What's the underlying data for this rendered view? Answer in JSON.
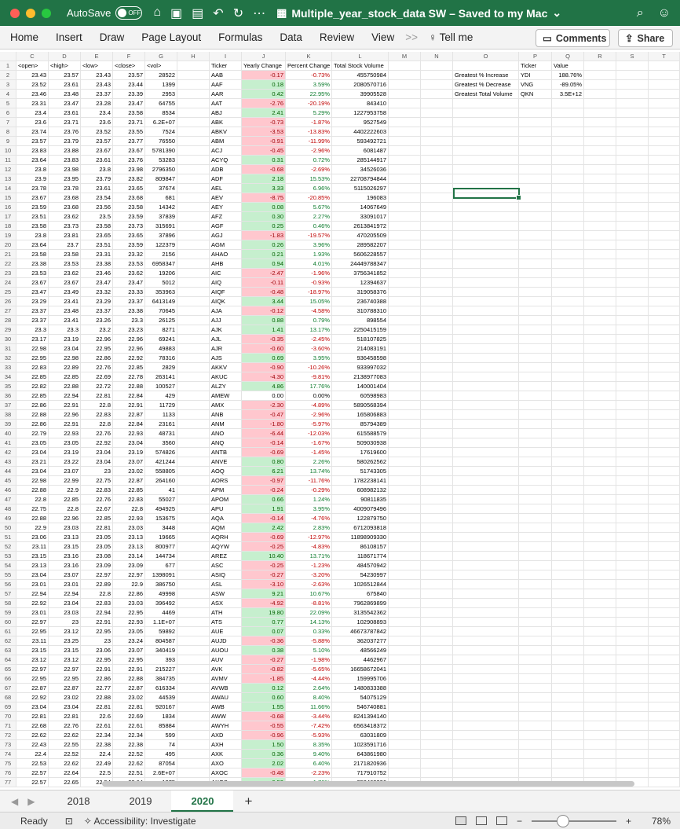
{
  "app": {
    "autosave_label": "AutoSave",
    "autosave_state": "OFF",
    "doc_title": "Multiple_year_stock_data SW – Saved to my Mac",
    "title_chevron": "⌄"
  },
  "ribbon": {
    "tabs": [
      "Home",
      "Insert",
      "Draw",
      "Page Layout",
      "Formulas",
      "Data",
      "Review",
      "View"
    ],
    "more": ">>",
    "tell_me": "Tell me",
    "comments": "Comments",
    "share": "Share"
  },
  "columns": [
    "",
    "C",
    "D",
    "E",
    "F",
    "G",
    "H",
    "I",
    "J",
    "K",
    "L",
    "M",
    "N",
    "O",
    "P",
    "Q",
    "R",
    "S",
    "T"
  ],
  "header_row": {
    "open": "<open>",
    "high": "<high>",
    "low": "<low>",
    "close": "<close>",
    "vol": "<vol>",
    "ticker": "Ticker",
    "yearly": "Yearly Change",
    "pct": "Percent Change",
    "total": "Total Stock Volume"
  },
  "summary": {
    "header": {
      "ticker": "Ticker",
      "value": "Value"
    },
    "rows": [
      {
        "label": "Greatest % Increase",
        "ticker": "YDI",
        "value": "188.76%"
      },
      {
        "label": "Greatest % Decrease",
        "ticker": "VNG",
        "value": "-89.05%"
      },
      {
        "label": "Greatest Total Volume",
        "ticker": "QKN",
        "value": "3.5E+12"
      }
    ]
  },
  "rows": [
    [
      "23.43",
      "23.57",
      "23.43",
      "23.57",
      "28522",
      "AAB",
      "-0.17",
      "-0.73%",
      "455750984"
    ],
    [
      "23.52",
      "23.61",
      "23.43",
      "23.44",
      "1399",
      "AAF",
      "0.18",
      "3.59%",
      "2080570716"
    ],
    [
      "23.46",
      "23.48",
      "23.37",
      "23.39",
      "2953",
      "AAR",
      "0.42",
      "22.95%",
      "39905528"
    ],
    [
      "23.31",
      "23.47",
      "23.28",
      "23.47",
      "64755",
      "AAT",
      "-2.76",
      "-20.19%",
      "843410"
    ],
    [
      "23.4",
      "23.61",
      "23.4",
      "23.58",
      "8534",
      "ABJ",
      "2.41",
      "5.29%",
      "1227953758"
    ],
    [
      "23.6",
      "23.71",
      "23.6",
      "23.71",
      "6.2E+07",
      "ABK",
      "-0.73",
      "-1.87%",
      "9527549"
    ],
    [
      "23.74",
      "23.76",
      "23.52",
      "23.55",
      "7524",
      "ABKV",
      "-3.53",
      "-13.83%",
      "4402222603"
    ],
    [
      "23.57",
      "23.79",
      "23.57",
      "23.77",
      "76550",
      "ABM",
      "-0.91",
      "-11.99%",
      "593492721"
    ],
    [
      "23.83",
      "23.88",
      "23.67",
      "23.67",
      "5781390",
      "ACJ",
      "-0.45",
      "-2.96%",
      "6081487"
    ],
    [
      "23.64",
      "23.83",
      "23.61",
      "23.76",
      "53283",
      "ACYQ",
      "0.31",
      "0.72%",
      "285144917"
    ],
    [
      "23.8",
      "23.98",
      "23.8",
      "23.98",
      "2796350",
      "ADB",
      "-0.68",
      "-2.69%",
      "34526036"
    ],
    [
      "23.9",
      "23.95",
      "23.79",
      "23.82",
      "809847",
      "ADF",
      "2.18",
      "15.53%",
      "22708794844"
    ],
    [
      "23.78",
      "23.78",
      "23.61",
      "23.65",
      "37674",
      "AEL",
      "3.33",
      "6.96%",
      "5115026297"
    ],
    [
      "23.67",
      "23.68",
      "23.54",
      "23.68",
      "681",
      "AEV",
      "-8.75",
      "-20.85%",
      "196083"
    ],
    [
      "23.59",
      "23.68",
      "23.56",
      "23.58",
      "14342",
      "AEY",
      "0.08",
      "5.67%",
      "14067649"
    ],
    [
      "23.51",
      "23.62",
      "23.5",
      "23.59",
      "37839",
      "AFZ",
      "0.30",
      "2.27%",
      "33091017"
    ],
    [
      "23.58",
      "23.73",
      "23.58",
      "23.73",
      "315691",
      "AGF",
      "0.25",
      "0.46%",
      "2613841972"
    ],
    [
      "23.8",
      "23.81",
      "23.65",
      "23.65",
      "37896",
      "AGJ",
      "-1.83",
      "-19.57%",
      "470205509"
    ],
    [
      "23.64",
      "23.7",
      "23.51",
      "23.59",
      "122379",
      "AGM",
      "0.26",
      "3.96%",
      "289582207"
    ],
    [
      "23.58",
      "23.58",
      "23.31",
      "23.32",
      "2156",
      "AHAO",
      "0.21",
      "1.93%",
      "5606228557"
    ],
    [
      "23.38",
      "23.53",
      "23.38",
      "23.53",
      "6958347",
      "AHB",
      "0.94",
      "4.01%",
      "24449788347"
    ],
    [
      "23.53",
      "23.62",
      "23.46",
      "23.62",
      "19206",
      "AIC",
      "-2.47",
      "-1.96%",
      "3756341852"
    ],
    [
      "23.67",
      "23.67",
      "23.47",
      "23.47",
      "5012",
      "AIQ",
      "-0.11",
      "-0.93%",
      "12394637"
    ],
    [
      "23.47",
      "23.49",
      "23.32",
      "23.33",
      "353963",
      "AIQF",
      "-0.48",
      "-18.97%",
      "319058376"
    ],
    [
      "23.29",
      "23.41",
      "23.29",
      "23.37",
      "6413149",
      "AIQK",
      "3.44",
      "15.05%",
      "236740388"
    ],
    [
      "23.37",
      "23.48",
      "23.37",
      "23.38",
      "70645",
      "AJA",
      "-0.12",
      "-4.58%",
      "310788310"
    ],
    [
      "23.37",
      "23.41",
      "23.26",
      "23.3",
      "26125",
      "AJJ",
      "0.88",
      "0.79%",
      "898554"
    ],
    [
      "23.3",
      "23.3",
      "23.2",
      "23.23",
      "8271",
      "AJK",
      "1.41",
      "13.17%",
      "2250415159"
    ],
    [
      "23.17",
      "23.19",
      "22.96",
      "22.96",
      "69241",
      "AJL",
      "-0.35",
      "-2.45%",
      "518107825"
    ],
    [
      "22.98",
      "23.04",
      "22.95",
      "22.96",
      "49883",
      "AJR",
      "-0.60",
      "-3.60%",
      "214083191"
    ],
    [
      "22.95",
      "22.98",
      "22.86",
      "22.92",
      "78316",
      "AJS",
      "0.69",
      "3.95%",
      "936458598"
    ],
    [
      "22.83",
      "22.89",
      "22.76",
      "22.85",
      "2829",
      "AKKV",
      "-0.90",
      "-10.26%",
      "933997032"
    ],
    [
      "22.85",
      "22.85",
      "22.69",
      "22.78",
      "263141",
      "AKUC",
      "-4.30",
      "-9.81%",
      "2138977083"
    ],
    [
      "22.82",
      "22.88",
      "22.72",
      "22.88",
      "100527",
      "ALZY",
      "4.86",
      "17.76%",
      "140001404"
    ],
    [
      "22.85",
      "22.94",
      "22.81",
      "22.84",
      "429",
      "AMEW",
      "0.00",
      "0.00%",
      "60598983"
    ],
    [
      "22.86",
      "22.91",
      "22.8",
      "22.91",
      "11729",
      "AMX",
      "-2.30",
      "-4.89%",
      "5890568394"
    ],
    [
      "22.88",
      "22.96",
      "22.83",
      "22.87",
      "1133",
      "ANB",
      "-0.47",
      "-2.96%",
      "165806883"
    ],
    [
      "22.86",
      "22.91",
      "22.8",
      "22.84",
      "23161",
      "ANM",
      "-1.80",
      "-5.97%",
      "85794389"
    ],
    [
      "22.79",
      "22.93",
      "22.76",
      "22.93",
      "48731",
      "ANO",
      "-6.44",
      "-12.03%",
      "615588579"
    ],
    [
      "23.05",
      "23.05",
      "22.92",
      "23.04",
      "3560",
      "ANQ",
      "-0.14",
      "-1.67%",
      "509030938"
    ],
    [
      "23.04",
      "23.19",
      "23.04",
      "23.19",
      "574826",
      "ANTB",
      "-0.69",
      "-1.45%",
      "17619600"
    ],
    [
      "23.21",
      "23.22",
      "23.04",
      "23.07",
      "421244",
      "ANVE",
      "0.80",
      "2.26%",
      "580262562"
    ],
    [
      "23.04",
      "23.07",
      "23",
      "23.02",
      "558805",
      "AOQ",
      "6.21",
      "13.74%",
      "51743305"
    ],
    [
      "22.98",
      "22.99",
      "22.75",
      "22.87",
      "264160",
      "AORS",
      "-0.97",
      "-11.76%",
      "1782238141"
    ],
    [
      "22.88",
      "22.9",
      "22.83",
      "22.85",
      "41",
      "APM",
      "-0.24",
      "-0.29%",
      "608982132"
    ],
    [
      "22.8",
      "22.85",
      "22.76",
      "22.83",
      "55027",
      "APOM",
      "0.66",
      "1.24%",
      "90811835"
    ],
    [
      "22.75",
      "22.8",
      "22.67",
      "22.8",
      "494925",
      "APU",
      "1.91",
      "3.95%",
      "4009079496"
    ],
    [
      "22.88",
      "22.96",
      "22.85",
      "22.93",
      "153675",
      "AQA",
      "-0.14",
      "-4.76%",
      "122879750"
    ],
    [
      "22.9",
      "23.03",
      "22.81",
      "23.03",
      "3448",
      "AQM",
      "2.42",
      "2.83%",
      "6712093818"
    ],
    [
      "23.06",
      "23.13",
      "23.05",
      "23.13",
      "19665",
      "AQRH",
      "-0.69",
      "-12.97%",
      "11898909330"
    ],
    [
      "23.11",
      "23.15",
      "23.05",
      "23.13",
      "800977",
      "AQYW",
      "-0.25",
      "-4.83%",
      "86108157"
    ],
    [
      "23.15",
      "23.16",
      "23.08",
      "23.14",
      "144734",
      "AREZ",
      "10.40",
      "13.71%",
      "118671774"
    ],
    [
      "23.13",
      "23.16",
      "23.09",
      "23.09",
      "677",
      "ASC",
      "-0.25",
      "-1.23%",
      "484570942"
    ],
    [
      "23.04",
      "23.07",
      "22.97",
      "22.97",
      "1398091",
      "ASIQ",
      "-0.27",
      "-3.20%",
      "54230997"
    ],
    [
      "23.01",
      "23.01",
      "22.89",
      "22.9",
      "386750",
      "ASL",
      "-3.10",
      "-2.63%",
      "1026512844"
    ],
    [
      "22.94",
      "22.94",
      "22.8",
      "22.86",
      "49998",
      "ASW",
      "9.21",
      "10.67%",
      "675840"
    ],
    [
      "22.92",
      "23.04",
      "22.83",
      "23.03",
      "396492",
      "ASX",
      "-4.92",
      "-8.81%",
      "7962869899"
    ],
    [
      "23.01",
      "23.03",
      "22.94",
      "22.95",
      "4469",
      "ATH",
      "19.80",
      "22.09%",
      "3135542362"
    ],
    [
      "22.97",
      "23",
      "22.91",
      "22.93",
      "1.1E+07",
      "ATS",
      "0.77",
      "14.13%",
      "102908893"
    ],
    [
      "22.95",
      "23.12",
      "22.95",
      "23.05",
      "59892",
      "AUE",
      "0.07",
      "0.33%",
      "46673787842"
    ],
    [
      "23.11",
      "23.25",
      "23",
      "23.24",
      "804587",
      "AUJD",
      "-0.36",
      "-5.88%",
      "362037277"
    ],
    [
      "23.15",
      "23.15",
      "23.06",
      "23.07",
      "340419",
      "AUOU",
      "0.38",
      "5.10%",
      "48566249"
    ],
    [
      "23.12",
      "23.12",
      "22.95",
      "22.95",
      "393",
      "AUV",
      "-0.27",
      "-1.98%",
      "4462967"
    ],
    [
      "22.97",
      "22.97",
      "22.91",
      "22.91",
      "215227",
      "AVK",
      "-0.82",
      "-5.65%",
      "16658672041"
    ],
    [
      "22.95",
      "22.95",
      "22.86",
      "22.88",
      "384735",
      "AVMV",
      "-1.85",
      "-4.44%",
      "159995706"
    ],
    [
      "22.87",
      "22.87",
      "22.77",
      "22.87",
      "616334",
      "AVWB",
      "0.12",
      "2.64%",
      "1480833388"
    ],
    [
      "22.92",
      "23.02",
      "22.88",
      "23.02",
      "44539",
      "AWAU",
      "0.60",
      "8.40%",
      "54075129"
    ],
    [
      "23.04",
      "23.04",
      "22.81",
      "22.81",
      "920167",
      "AWB",
      "1.55",
      "11.66%",
      "546740881"
    ],
    [
      "22.81",
      "22.81",
      "22.6",
      "22.69",
      "1834",
      "AWW",
      "-0.68",
      "-3.44%",
      "8241394140"
    ],
    [
      "22.68",
      "22.76",
      "22.61",
      "22.61",
      "85884",
      "AWYH",
      "-0.55",
      "-7.42%",
      "6563418372"
    ],
    [
      "22.62",
      "22.62",
      "22.34",
      "22.34",
      "599",
      "AXD",
      "-0.96",
      "-5.93%",
      "63031809"
    ],
    [
      "22.43",
      "22.55",
      "22.38",
      "22.38",
      "74",
      "AXH",
      "1.50",
      "8.35%",
      "1023591716"
    ],
    [
      "22.4",
      "22.52",
      "22.4",
      "22.52",
      "495",
      "AXK",
      "0.36",
      "9.40%",
      "643861980"
    ],
    [
      "22.53",
      "22.62",
      "22.49",
      "22.62",
      "87054",
      "AXO",
      "2.02",
      "6.40%",
      "2171820936"
    ],
    [
      "22.57",
      "22.64",
      "22.5",
      "22.51",
      "2.6E+07",
      "AXOC",
      "-0.48",
      "-2.23%",
      "717910752"
    ],
    [
      "22.57",
      "22.65",
      "22.54",
      "22.64",
      "1275",
      "AXOS",
      "0.59",
      "1.76%",
      "352463236"
    ]
  ],
  "sheets": [
    "2018",
    "2019",
    "2020"
  ],
  "active_sheet": "2020",
  "status": {
    "ready": "Ready",
    "accessibility": "Accessibility: Investigate",
    "zoom": "78%",
    "zoom_minus": "−",
    "zoom_plus": "+"
  },
  "colors": {
    "excel_green": "#217346",
    "positive_fill": "#c6efce",
    "negative_fill": "#ffc7ce"
  }
}
